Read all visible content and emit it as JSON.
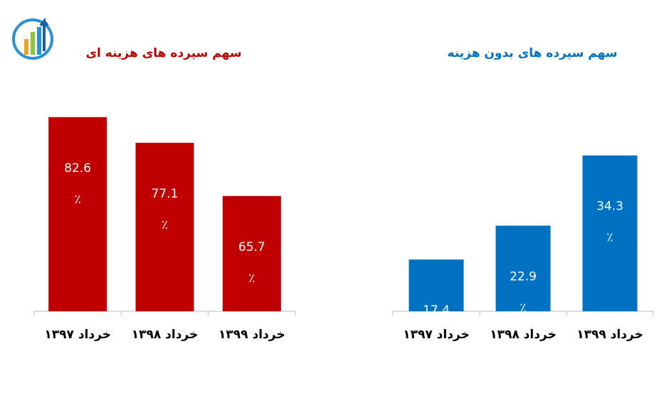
{
  "chart_data": [
    {
      "type": "bar",
      "title": "سهم سپرده های هزینه ای",
      "color": "#c00000",
      "categories": [
        "خرداد ۱۳۹۷",
        "خرداد ۱۳۹۸",
        "خرداد ۱۳۹۹"
      ],
      "values": [
        82.6,
        77.1,
        65.7
      ],
      "unit_label": "٪",
      "ylim": [
        41,
        85
      ]
    },
    {
      "type": "bar",
      "title": "سهم سپرده های بدون هزینه",
      "color": "#0070c0",
      "categories": [
        "خرداد ۱۳۹۷",
        "خرداد ۱۳۹۸",
        "خرداد ۱۳۹۹"
      ],
      "values": [
        17.4,
        22.9,
        34.3
      ],
      "unit_label": "٪",
      "ylim": [
        9,
        36
      ]
    }
  ]
}
